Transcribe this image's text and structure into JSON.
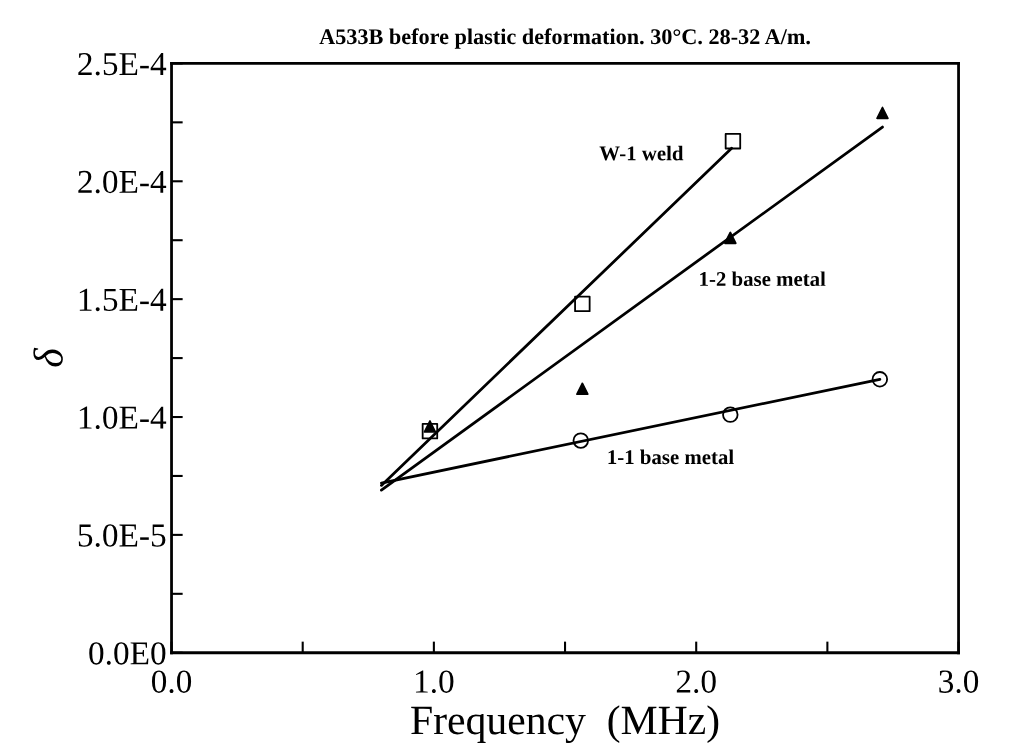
{
  "chart_data": {
    "type": "scatter",
    "title": "A533B before plastic deformation. 30°C. 28-32 A/m.",
    "xlabel": "Frequency  (MHz)",
    "ylabel": "δ",
    "series": [
      {
        "marker": "square",
        "color": "#000000",
        "x": [
          0.985,
          1.566,
          2.14
        ],
        "values": [
          9.4e-05,
          0.000148,
          0.000217
        ]
      },
      {
        "marker": "triangle",
        "color": "#000000",
        "x": [
          0.985,
          1.566,
          2.13,
          2.71
        ],
        "values": [
          9.6e-05,
          0.000112,
          0.000176,
          0.000229
        ]
      },
      {
        "marker": "circle",
        "color": "#000000",
        "x": [
          1.56,
          2.13,
          2.7
        ],
        "values": [
          9e-05,
          0.000101,
          0.000116
        ]
      },
      {
        "type": "line",
        "name": "W-1 weld",
        "marker": "none",
        "color": "#000000",
        "x": [
          0.8,
          2.135
        ],
        "values": [
          7.1e-05,
          0.000214
        ]
      },
      {
        "type": "line",
        "name": "1-2 base metal",
        "marker": "none",
        "color": "#000000",
        "x": [
          0.8,
          2.71
        ],
        "values": [
          6.9e-05,
          0.000223
        ]
      },
      {
        "type": "line",
        "name": "1-1 base metal",
        "marker": "none",
        "color": "#000000",
        "x": [
          0.8,
          2.7
        ],
        "values": [
          7.2e-05,
          0.000116
        ]
      }
    ],
    "xlim": [
      0,
      3
    ],
    "ylim": [
      0,
      0.00025
    ],
    "xticks": [
      {
        "value": 0,
        "label": "0.0"
      },
      {
        "value": 0.5,
        "label": null
      },
      {
        "value": 1,
        "label": "1.0"
      },
      {
        "value": 1.5,
        "label": null
      },
      {
        "value": 2,
        "label": "2.0"
      },
      {
        "value": 2.5,
        "label": null
      },
      {
        "value": 3,
        "label": "3.0"
      }
    ],
    "yticks": [
      {
        "value": 0,
        "label": "0.0E0"
      },
      {
        "value": 2.5e-05,
        "label": null
      },
      {
        "value": 5e-05,
        "label": "5.0E-5"
      },
      {
        "value": 7.5e-05,
        "label": null
      },
      {
        "value": 0.0001,
        "label": "1.0E-4"
      },
      {
        "value": 0.000125,
        "label": null
      },
      {
        "value": 0.00015,
        "label": "1.5E-4"
      },
      {
        "value": 0.000175,
        "label": null
      },
      {
        "value": 0.0002,
        "label": "2.0E-4"
      },
      {
        "value": 0.000225,
        "label": null
      },
      {
        "value": 0.00025,
        "label": "2.5E-4"
      }
    ],
    "grid": false
  }
}
